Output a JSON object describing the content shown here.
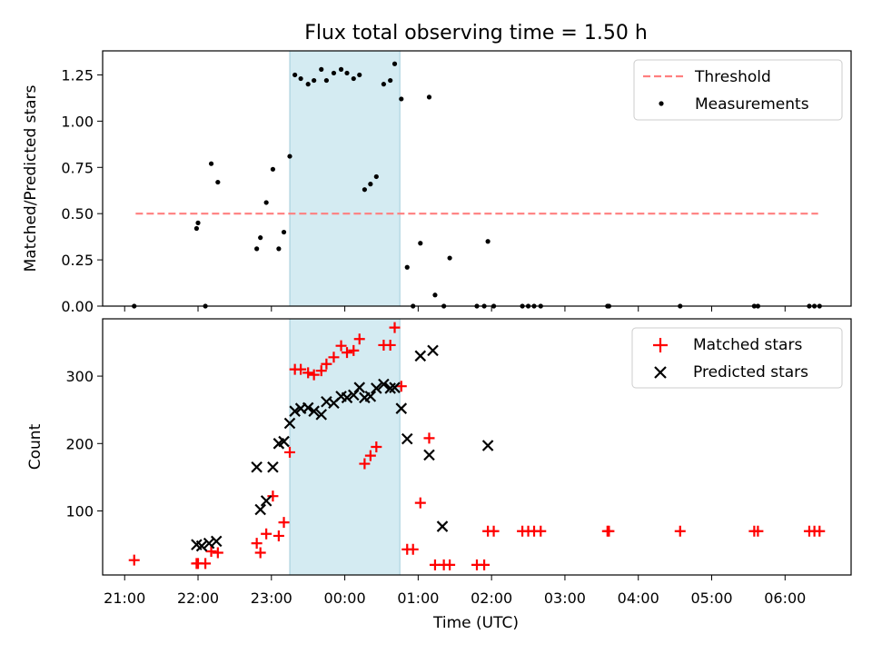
{
  "title": "Flux total observing time = 1.50 h",
  "xlabel": "Time (UTC)",
  "x_ticks": [
    "21:00",
    "22:00",
    "23:00",
    "00:00",
    "01:00",
    "02:00",
    "03:00",
    "04:00",
    "05:00",
    "06:00"
  ],
  "highlight_span_hours": [
    23.25,
    24.75
  ],
  "colors": {
    "threshold": "#ff7f7f",
    "matched": "#ff0000",
    "predicted": "#000000",
    "span": "#add8e6",
    "measure": "#000000"
  },
  "chart_data": [
    {
      "type": "scatter",
      "ylabel": "Matched/Predicted stars",
      "xlim": [
        20.7,
        30.9
      ],
      "ylim": [
        0,
        1.38
      ],
      "y_ticks": [
        "0.00",
        "0.25",
        "0.50",
        "0.75",
        "1.00",
        "1.25"
      ],
      "legend": {
        "position": "top-right",
        "threshold": "Threshold",
        "measurements": "Measurements"
      },
      "threshold": {
        "value": 0.5,
        "x_start": 21.15,
        "x_end": 30.45
      },
      "series": [
        {
          "name": "Measurements",
          "x": [
            21.13,
            21.98,
            22.0,
            22.1,
            22.18,
            22.27,
            22.8,
            22.85,
            22.93,
            23.02,
            23.1,
            23.17,
            23.25,
            23.32,
            23.4,
            23.5,
            23.58,
            23.68,
            23.75,
            23.85,
            23.95,
            24.03,
            24.12,
            24.2,
            24.27,
            24.35,
            24.43,
            24.53,
            24.62,
            24.68,
            24.77,
            24.85,
            24.93,
            25.03,
            25.15,
            25.23,
            25.35,
            25.43,
            25.8,
            25.9,
            25.95,
            26.03,
            26.42,
            26.5,
            26.58,
            26.67,
            27.58,
            27.6,
            28.57,
            29.58,
            29.63,
            30.33,
            30.4,
            30.47
          ],
          "y": [
            0.0,
            0.42,
            0.45,
            0.0,
            0.77,
            0.67,
            0.31,
            0.37,
            0.56,
            0.74,
            0.31,
            0.4,
            0.81,
            1.25,
            1.23,
            1.2,
            1.22,
            1.28,
            1.22,
            1.26,
            1.28,
            1.26,
            1.23,
            1.25,
            0.63,
            0.66,
            0.7,
            1.2,
            1.22,
            1.31,
            1.12,
            0.21,
            0.0,
            0.34,
            1.13,
            0.06,
            0.0,
            0.26,
            0.0,
            0.0,
            0.35,
            0.0,
            0.0,
            0.0,
            0.0,
            0.0,
            0.0,
            0.0,
            0.0,
            0.0,
            0.0,
            0.0,
            0.0,
            0.0
          ]
        }
      ]
    },
    {
      "type": "scatter",
      "ylabel": "Count",
      "xlim": [
        20.7,
        30.9
      ],
      "ylim": [
        5,
        385
      ],
      "y_ticks": [
        "100",
        "200",
        "300"
      ],
      "legend": {
        "position": "top-right"
      },
      "series": [
        {
          "name": "Matched stars",
          "marker": "+",
          "x": [
            21.13,
            21.98,
            22.0,
            22.1,
            22.18,
            22.27,
            22.8,
            22.85,
            22.93,
            23.02,
            23.1,
            23.17,
            23.25,
            23.32,
            23.4,
            23.5,
            23.58,
            23.68,
            23.75,
            23.85,
            23.95,
            24.03,
            24.12,
            24.2,
            24.27,
            24.35,
            24.43,
            24.53,
            24.62,
            24.68,
            24.77,
            24.85,
            24.93,
            25.03,
            25.15,
            25.23,
            25.35,
            25.43,
            25.8,
            25.9,
            25.95,
            26.03,
            26.42,
            26.5,
            26.58,
            26.67,
            27.58,
            27.6,
            28.57,
            29.58,
            29.63,
            30.33,
            30.4,
            30.47
          ],
          "y": [
            27,
            22,
            22,
            22,
            40,
            38,
            52,
            38,
            66,
            122,
            63,
            83,
            187,
            310,
            310,
            305,
            302,
            308,
            318,
            328,
            345,
            335,
            338,
            355,
            170,
            182,
            195,
            346,
            346,
            372,
            285,
            43,
            43,
            112,
            208,
            20,
            20,
            20,
            20,
            20,
            70,
            70,
            70,
            70,
            70,
            70,
            70,
            70,
            70,
            70,
            70,
            70,
            70,
            70
          ]
        },
        {
          "name": "Predicted stars",
          "marker": "x",
          "x": [
            21.98,
            22.05,
            22.15,
            22.25,
            22.8,
            22.85,
            22.93,
            23.02,
            23.1,
            23.17,
            23.25,
            23.32,
            23.4,
            23.5,
            23.58,
            23.68,
            23.75,
            23.85,
            23.95,
            24.03,
            24.12,
            24.2,
            24.27,
            24.35,
            24.43,
            24.53,
            24.62,
            24.68,
            24.77,
            24.85,
            25.03,
            25.15,
            25.2,
            25.33,
            25.95
          ],
          "y": [
            50,
            48,
            52,
            55,
            165,
            102,
            115,
            165,
            200,
            203,
            230,
            248,
            252,
            253,
            248,
            243,
            262,
            260,
            270,
            268,
            272,
            283,
            268,
            270,
            282,
            288,
            282,
            283,
            252,
            207,
            330,
            183,
            338,
            77,
            197
          ]
        }
      ]
    }
  ]
}
